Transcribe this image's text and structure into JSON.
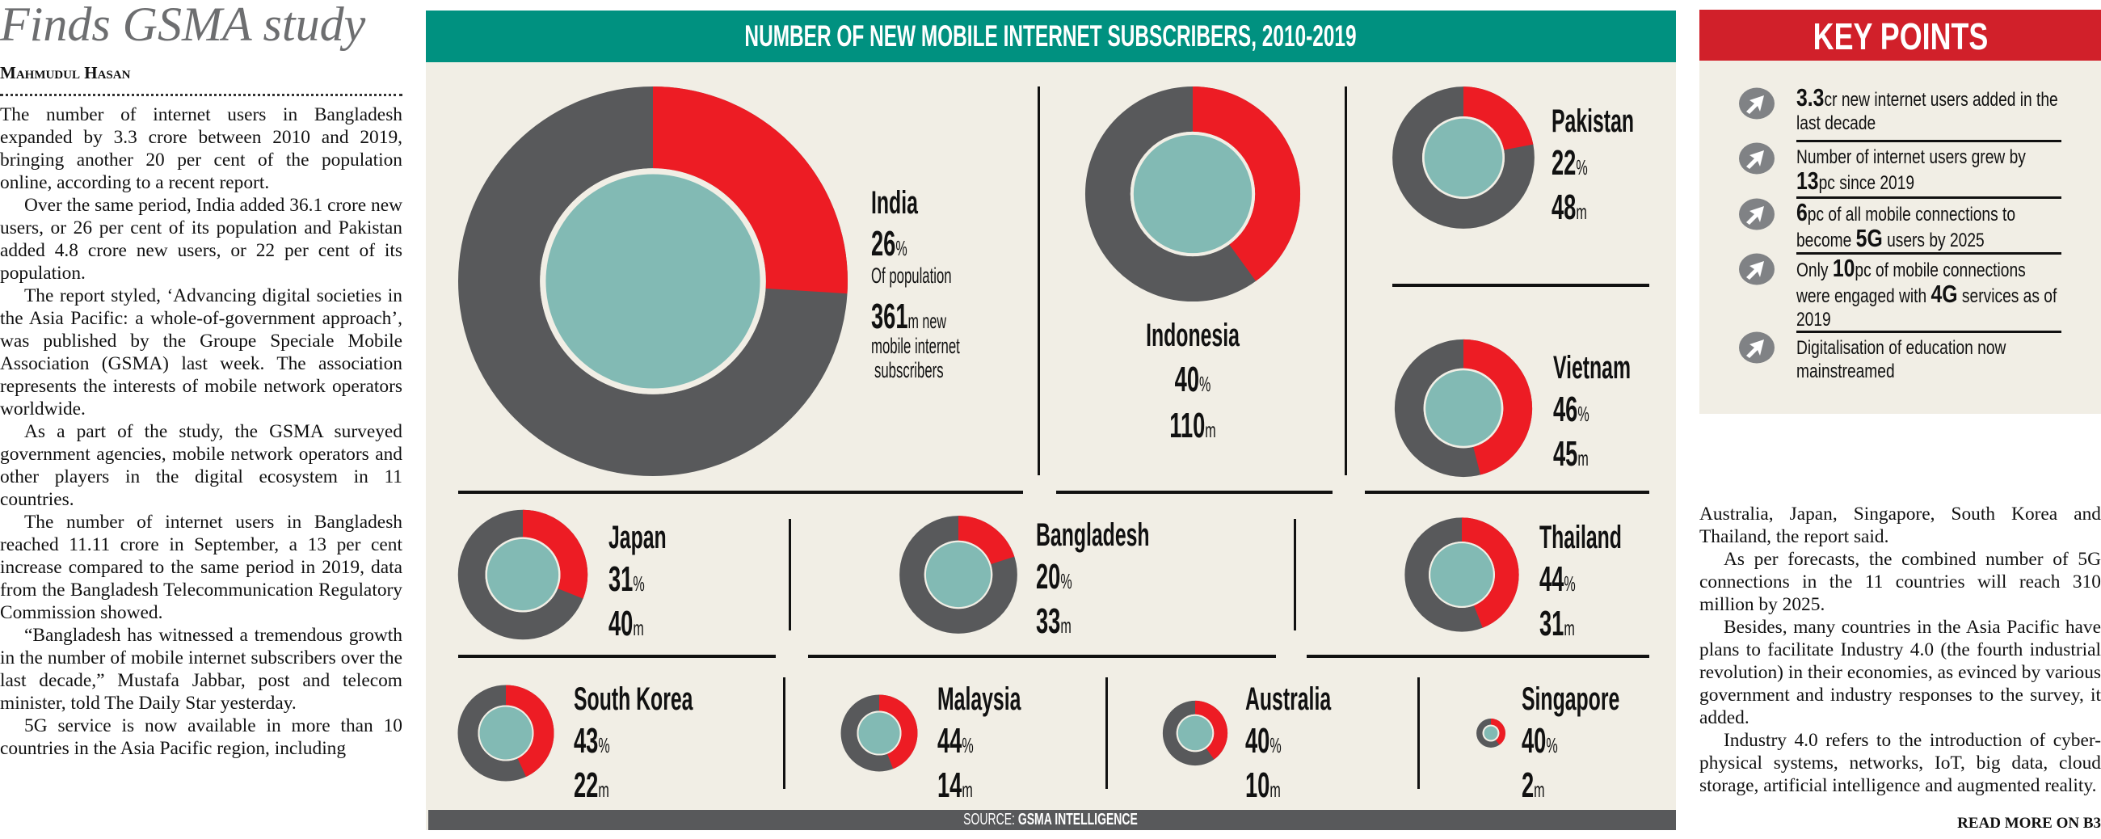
{
  "article": {
    "title": "Finds GSMA study",
    "byline": "Mahmudul Hasan",
    "left_paragraphs": [
      "The number of internet users in Bangladesh expanded by 3.3 crore between 2010 and 2019, bringing another 20 per cent of the population online, according to a recent report.",
      "Over the same period, India added 36.1 crore new users, or 26 per cent of its population and Pakistan added 4.8 crore new users, or 22 per cent of its population.",
      "The report styled, ‘Advancing digital societies in the Asia Pacific: a whole-of-government approach’, was published by the Groupe Speciale Mobile Association (GSMA) last week. The association represents the interests of mobile network operators worldwide.",
      "As a part of the study, the GSMA surveyed government agencies, mobile network operators and other players in the digital ecosystem in 11 countries.",
      "The number of internet users in Bangladesh reached 11.11 crore in September, a 13 per cent increase compared to the same period in 2019, data from the Bangladesh Telecommunication Regulatory Commission showed.",
      "“Bangladesh has witnessed a tremendous growth in the number of mobile internet subscribers over the last decade,” Mustafa Jabbar, post and telecom minister, told The Daily Star yesterday.",
      "5G service is now available in more than 10 countries in the Asia Pacific region, including"
    ],
    "right_paragraphs": [
      "Australia, Japan, Singapore, South Korea and Thailand, the report said.",
      "As per forecasts, the combined number of 5G connections in the 11 countries will reach 310 million by 2025.",
      "Besides, many countries in the Asia Pacific have plans to facilitate Industry 4.0 (the fourth industrial revolution) in their economies, as evinced by various government and industry responses to the survey, it added.",
      "Industry 4.0 refers to the introduction of cyber-physical systems, networks, IoT, big data, cloud storage, artificial intelligence and augmented reality."
    ],
    "read_more": "READ MORE ON B3"
  },
  "infographic": {
    "title": "NUMBER OF NEW MOBILE INTERNET SUBSCRIBERS, 2010-2019",
    "source_label": "SOURCE:",
    "source_name": "GSMA INTELLIGENCE",
    "pct_unit": "%",
    "value_unit": "m",
    "india_extra": {
      "of_population": "Of population",
      "new": "new",
      "line2": "mobile internet",
      "line3": "subscribers"
    },
    "colors": {
      "header": "#009180",
      "share": "#ed1c24",
      "rest": "#58595b",
      "inner": "#82bab4",
      "background": "#f1eee5"
    }
  },
  "chart_data": {
    "type": "pie",
    "title": "NUMBER OF NEW MOBILE INTERNET SUBSCRIBERS, 2010-2019",
    "value_label": "new mobile internet subscribers (millions)",
    "pct_label": "% of population",
    "countries": [
      {
        "name": "India",
        "pct": 26,
        "value": 361
      },
      {
        "name": "Indonesia",
        "pct": 40,
        "value": 110
      },
      {
        "name": "Pakistan",
        "pct": 22,
        "value": 48
      },
      {
        "name": "Vietnam",
        "pct": 46,
        "value": 45
      },
      {
        "name": "Japan",
        "pct": 31,
        "value": 40
      },
      {
        "name": "Bangladesh",
        "pct": 20,
        "value": 33
      },
      {
        "name": "Thailand",
        "pct": 44,
        "value": 31
      },
      {
        "name": "South Korea",
        "pct": 43,
        "value": 22
      },
      {
        "name": "Malaysia",
        "pct": 44,
        "value": 14
      },
      {
        "name": "Australia",
        "pct": 40,
        "value": 10
      },
      {
        "name": "Singapore",
        "pct": 40,
        "value": 2
      }
    ]
  },
  "key_points": {
    "title": "KEY POINTS",
    "items": [
      {
        "parts": [
          "3.3",
          "cr new internet users added in the last decade"
        ]
      },
      {
        "parts": [
          "Number of internet users grew by ",
          "13",
          "pc since 2019"
        ]
      },
      {
        "parts": [
          "6",
          "pc of all mobile connections to become ",
          "5G",
          " users by 2025"
        ]
      },
      {
        "parts": [
          "Only ",
          "10",
          "pc of mobile connections were engaged with ",
          "4G",
          " services as of 2019"
        ]
      },
      {
        "parts": [
          "Digitalisation of education now mainstreamed"
        ]
      }
    ]
  }
}
